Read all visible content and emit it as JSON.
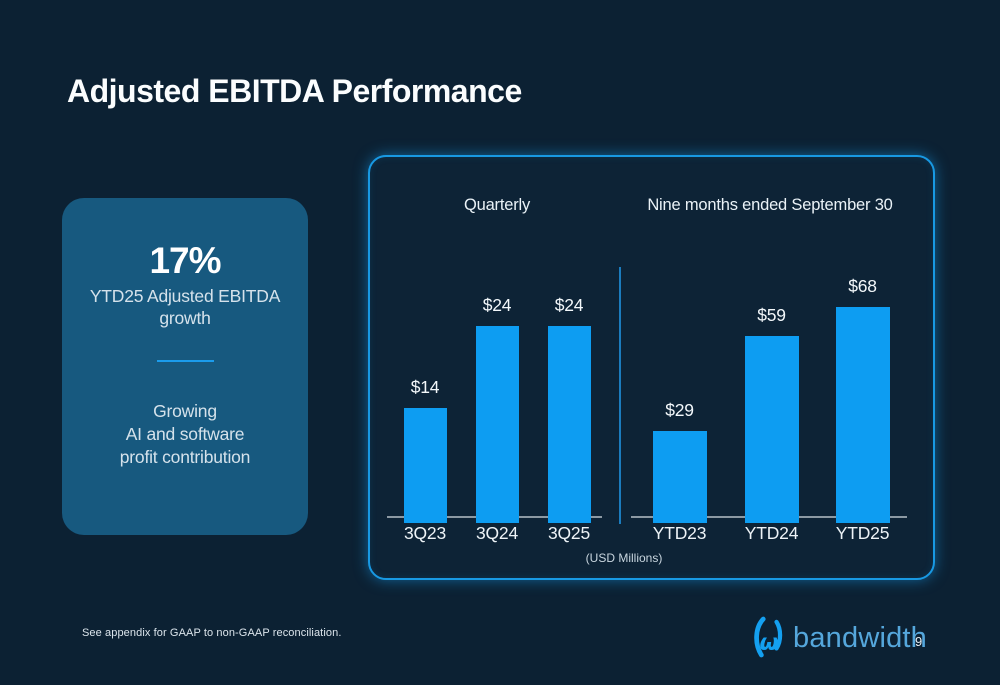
{
  "slide": {
    "title": "Adjusted EBITDA Performance",
    "footnote": "See appendix for GAAP to non-GAAP reconciliation.",
    "brand": "bandwidth",
    "page_number": "9"
  },
  "highlight_card": {
    "stat": "17%",
    "stat_caption": "YTD25 Adjusted EBITDA\ngrowth",
    "description": "Growing\nAI and software\nprofit contribution"
  },
  "chart_data": {
    "type": "bar",
    "title": "Adjusted EBITDA Performance",
    "units_label": "(USD Millions)",
    "value_prefix": "$",
    "bar_color": "#0D9DF2",
    "legend_position": "none",
    "grid": false,
    "groups": [
      {
        "title": "Quarterly",
        "categories": [
          "3Q23",
          "3Q24",
          "3Q25"
        ],
        "values": [
          14,
          24,
          24
        ],
        "labels": [
          "$14",
          "$24",
          "$24"
        ],
        "ylim": [
          0,
          26
        ]
      },
      {
        "title": "Nine months ended September 30",
        "categories": [
          "YTD23",
          "YTD24",
          "YTD25"
        ],
        "values": [
          29,
          59,
          68
        ],
        "labels": [
          "$29",
          "$59",
          "$68"
        ],
        "ylim": [
          0,
          72
        ]
      }
    ]
  },
  "colors": {
    "background": "#0C2133",
    "card_fill": "#17597F",
    "bar_blue": "#0D9DF2",
    "panel_border": "#1899E3",
    "accent_divider": "#1B9CEC",
    "baseline_grey": "#8C99A3",
    "logo_blue": "#14A0F0",
    "wordmark_blue": "#55A7DC"
  }
}
